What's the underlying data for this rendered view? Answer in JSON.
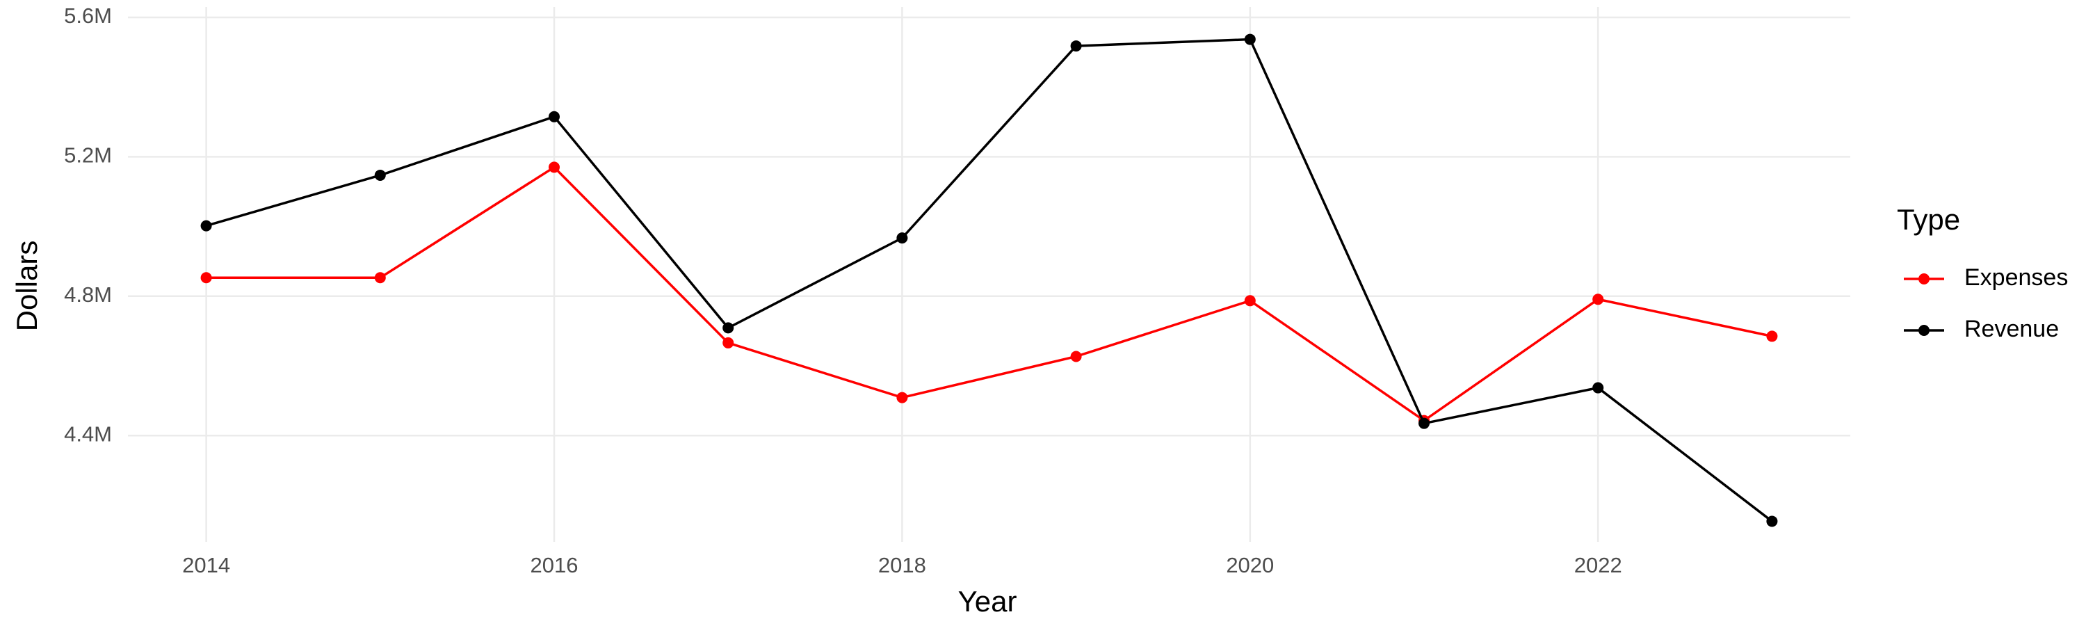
{
  "chart_data": {
    "type": "line",
    "x_label": "Year",
    "y_label": "Dollars",
    "legend_title": "Type",
    "legend": "right",
    "grid": true,
    "x": [
      2014,
      2015,
      2016,
      2017,
      2018,
      2019,
      2020,
      2021,
      2022,
      2023
    ],
    "series": [
      {
        "name": "Expenses",
        "color": "#ff0000",
        "values": [
          4853000,
          4853000,
          5170000,
          4666000,
          4509000,
          4627000,
          4787000,
          4443000,
          4791000,
          4685000
        ]
      },
      {
        "name": "Revenue",
        "color": "#000000",
        "values": [
          5002000,
          5147000,
          5315000,
          4709000,
          4967000,
          5518000,
          5537000,
          4435000,
          4537000,
          4154000
        ]
      }
    ],
    "xlim": [
      2013.55,
      2023.45
    ],
    "xticks": [
      2014,
      2016,
      2018,
      2020,
      2022
    ],
    "ylim": [
      4095000,
      5600000
    ],
    "yticks": [
      {
        "value": 4400000,
        "label": "4.4M"
      },
      {
        "value": 4800000,
        "label": "4.8M"
      },
      {
        "value": 5200000,
        "label": "5.2M"
      },
      {
        "value": 5600000,
        "label": "5.6M"
      }
    ]
  }
}
